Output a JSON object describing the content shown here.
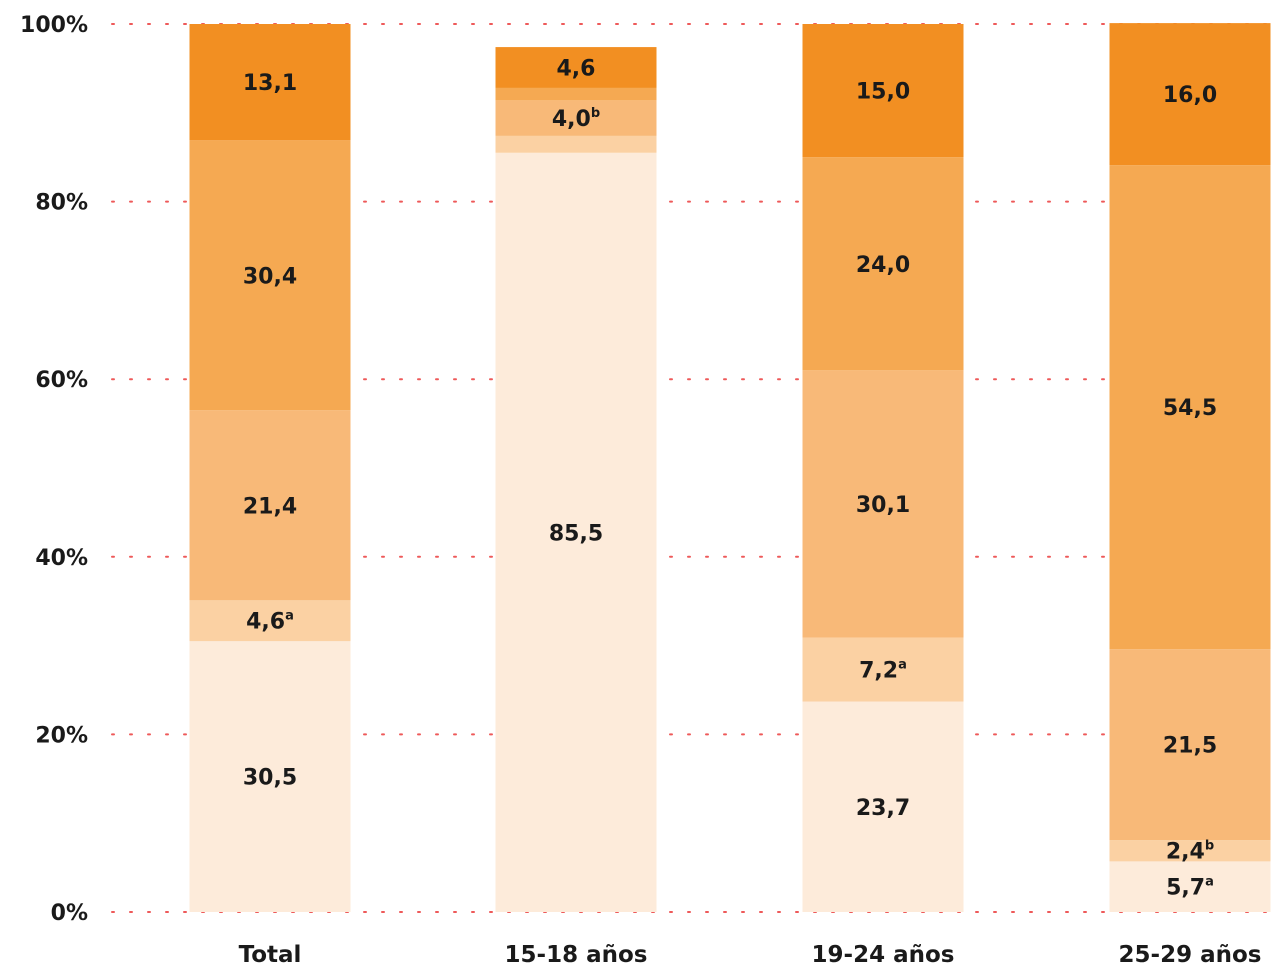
{
  "chart_data": {
    "type": "bar",
    "stacked": true,
    "normalized": true,
    "categories": [
      "Total",
      "15-18 años",
      "19-24 años",
      "25-29 años"
    ],
    "ylim": [
      0,
      100
    ],
    "yticks": [
      "0%",
      "20%",
      "40%",
      "60%",
      "80%",
      "100%"
    ],
    "grid": true,
    "series": [
      {
        "color": "#fdebda",
        "values": [
          30.5,
          85.5,
          23.7,
          5.7
        ],
        "labels": [
          "30,5",
          "85,5",
          "23,7",
          "5,7"
        ],
        "notes": [
          "",
          "",
          "",
          "a"
        ]
      },
      {
        "color": "#fbd1a3",
        "values": [
          4.6,
          1.9,
          7.2,
          2.4
        ],
        "labels": [
          "4,6",
          "",
          "7,2",
          "2,4"
        ],
        "notes": [
          "a",
          "",
          "a",
          "b"
        ]
      },
      {
        "color": "#f8b978",
        "values": [
          21.4,
          4.0,
          30.1,
          21.5
        ],
        "labels": [
          "21,4",
          "4,0",
          "30,1",
          "21,5"
        ],
        "notes": [
          "",
          "b",
          "",
          ""
        ]
      },
      {
        "color": "#f5a952",
        "values": [
          30.4,
          1.4,
          24.0,
          54.5
        ],
        "labels": [
          "30,4",
          "",
          "24,0",
          "54,5"
        ],
        "notes": [
          "",
          "",
          "",
          ""
        ]
      },
      {
        "color": "#f28f22",
        "values": [
          13.1,
          4.6,
          15.0,
          16.0
        ],
        "labels": [
          "13,1",
          "4,6",
          "15,0",
          "16,0"
        ],
        "notes": [
          "",
          "",
          "",
          ""
        ]
      }
    ]
  }
}
